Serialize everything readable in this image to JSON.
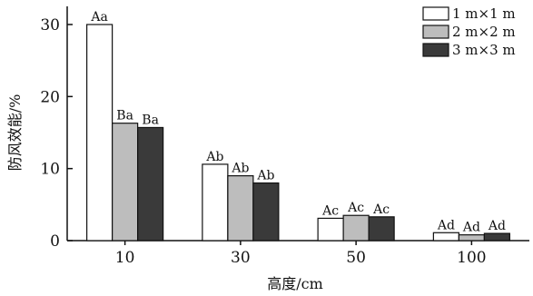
{
  "chart_data": {
    "type": "bar",
    "title": "",
    "xlabel": "高度/cm",
    "ylabel": "防风效能/%",
    "ylim": [
      0,
      30
    ],
    "yticks": [
      0,
      10,
      20,
      30
    ],
    "categories": [
      "10",
      "30",
      "50",
      "100"
    ],
    "legend_position": "top-right",
    "grid": false,
    "series": [
      {
        "name": "1 m×1 m",
        "color": "#ffffff",
        "values": [
          30,
          10.6,
          3.1,
          1.1
        ],
        "labels": [
          "Aa",
          "Ab",
          "Ac",
          "Ad"
        ]
      },
      {
        "name": "2 m×2 m",
        "color": "#bdbdbd",
        "values": [
          16.3,
          9.0,
          3.5,
          0.8
        ],
        "labels": [
          "Ba",
          "Ab",
          "Ac",
          "Ad"
        ]
      },
      {
        "name": "3 m×3 m",
        "color": "#3a3a3a",
        "values": [
          15.7,
          8.0,
          3.3,
          1.0
        ],
        "labels": [
          "Ba",
          "Ab",
          "Ac",
          "Ad"
        ]
      }
    ]
  }
}
